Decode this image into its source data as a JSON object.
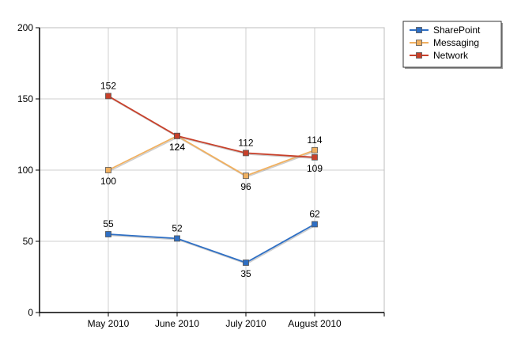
{
  "chart_data": {
    "type": "line",
    "categories": [
      "May 2010",
      "June 2010",
      "July 2010",
      "August 2010"
    ],
    "series": [
      {
        "name": "SharePoint",
        "values": [
          55,
          52,
          35,
          62
        ],
        "color": "#2e6fc4",
        "labels": [
          "55",
          "52",
          "35",
          "62"
        ]
      },
      {
        "name": "Messaging",
        "values": [
          100,
          124,
          96,
          114
        ],
        "color": "#f0b060",
        "labels": [
          "100",
          "124",
          "96",
          "114"
        ]
      },
      {
        "name": "Network",
        "values": [
          152,
          124,
          112,
          109
        ],
        "color": "#c8402a",
        "labels": [
          "152",
          "124",
          "112",
          "109"
        ]
      }
    ],
    "ylim": [
      0,
      200
    ],
    "yticks": [
      0,
      50,
      100,
      150,
      200
    ],
    "grid": true,
    "legend_position": "top-right"
  }
}
